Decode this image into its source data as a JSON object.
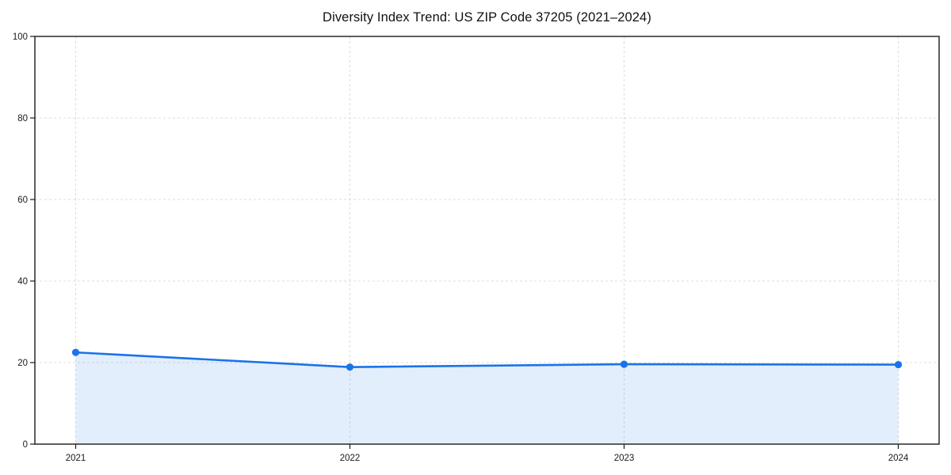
{
  "chart_data": {
    "type": "line",
    "fill_under": true,
    "title": "Diversity Index Trend: US ZIP Code 37205 (2021–2024)",
    "xlabel": "",
    "ylabel": "",
    "x": [
      2021,
      2022,
      2023,
      2024
    ],
    "values": [
      22.5,
      18.9,
      19.6,
      19.5
    ],
    "ylim": [
      0,
      100
    ],
    "yticks": [
      0,
      20,
      40,
      60,
      80,
      100
    ],
    "xticks": [
      "2021",
      "2022",
      "2023",
      "2024"
    ],
    "grid": true,
    "grid_style": "dashed",
    "legend": "none",
    "marker": "circle",
    "colors": {
      "line": "#1a73e8",
      "marker": "#1a73e8",
      "fill": "#1a73e8",
      "fill_opacity": 0.12,
      "grid": "#dcdcdc",
      "spine": "#1a1a1a",
      "tick_label": "#1a1a1a",
      "title": "#111111",
      "background": "#ffffff"
    }
  }
}
